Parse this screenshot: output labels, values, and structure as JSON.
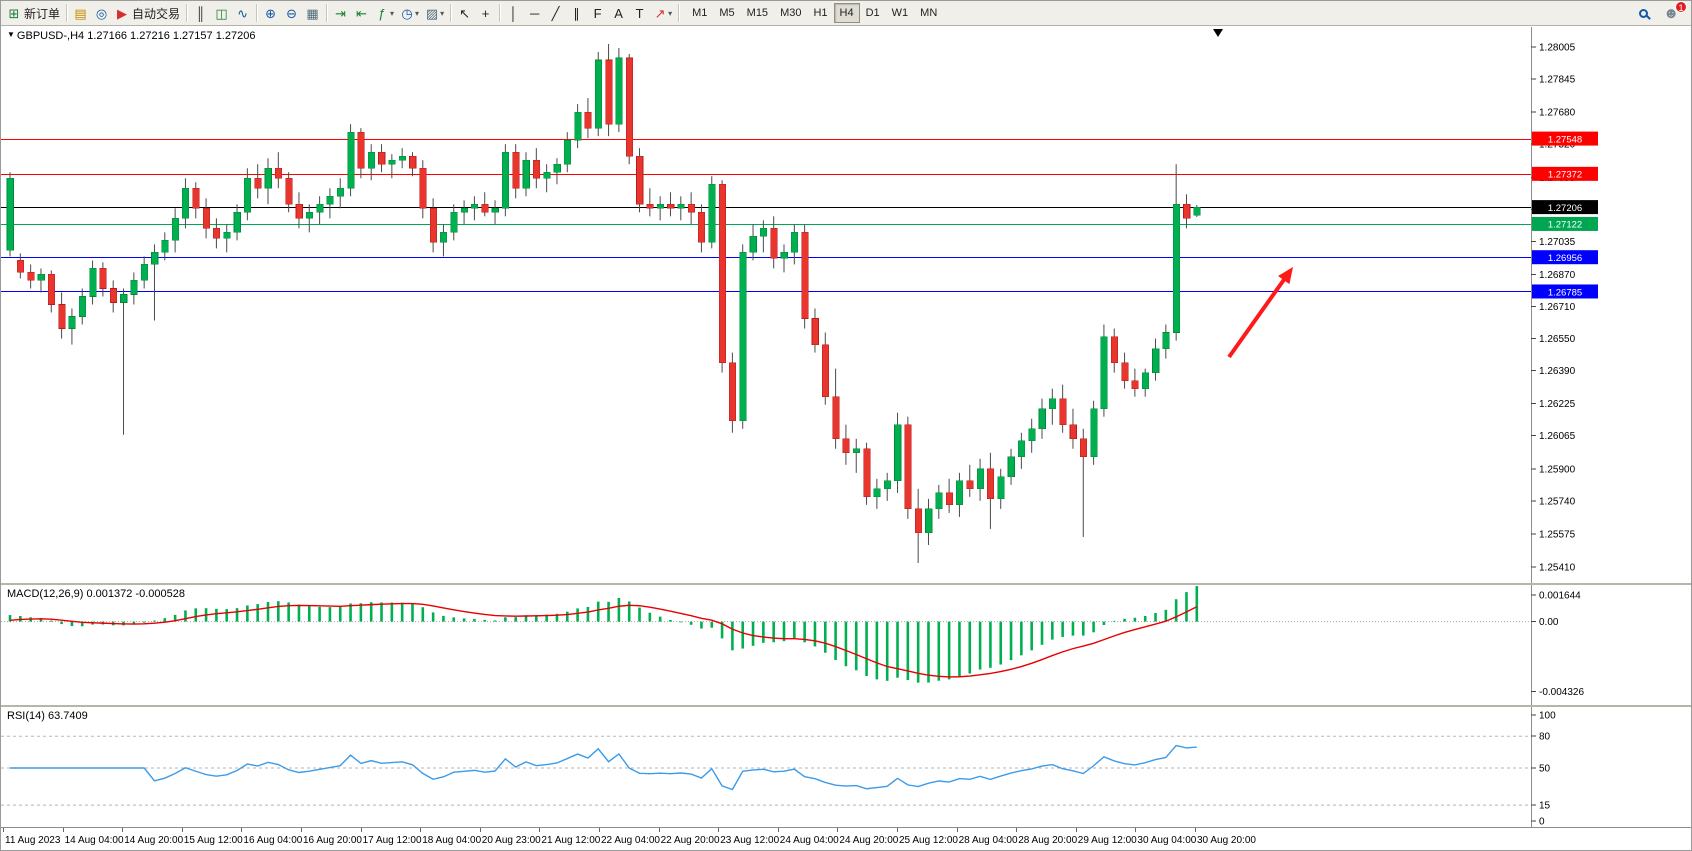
{
  "toolbar": {
    "notification_count": "1",
    "active_timeframe": "H4",
    "timeframes": [
      "M1",
      "M5",
      "M15",
      "M30",
      "H1",
      "H4",
      "D1",
      "W1",
      "MN"
    ],
    "items": [
      {
        "type": "button",
        "name": "new-order-button",
        "icon": "new-order-icon",
        "glyph": "⊞",
        "glyph_color": "#1a7f37",
        "label": "新订单"
      },
      {
        "type": "sep"
      },
      {
        "type": "button",
        "name": "charts-window-button",
        "icon": "chart-window-icon",
        "glyph": "▤",
        "glyph_color": "#c28b00"
      },
      {
        "type": "button",
        "name": "navigator-button",
        "icon": "navigator-icon",
        "glyph": "◎",
        "glyph_color": "#1258a8"
      },
      {
        "type": "button",
        "name": "auto-trading-button",
        "icon": "auto-trading-icon",
        "glyph": "▶",
        "glyph_color": "#d3302f",
        "label": "自动交易"
      },
      {
        "type": "sep"
      },
      {
        "type": "button",
        "name": "bar-chart-button",
        "icon": "ohlc-bars-icon",
        "glyph": "║",
        "glyph_color": "#333333"
      },
      {
        "type": "button",
        "name": "candlestick-chart-button",
        "icon": "candlestick-icon",
        "glyph": "◫",
        "glyph_color": "#1a7f37"
      },
      {
        "type": "button",
        "name": "line-chart-button",
        "icon": "line-chart-icon",
        "glyph": "∿",
        "glyph_color": "#1258a8"
      },
      {
        "type": "sep"
      },
      {
        "type": "button",
        "name": "zoom-in-button",
        "icon": "zoom-in-icon",
        "glyph": "⊕",
        "glyph_color": "#1258a8"
      },
      {
        "type": "button",
        "name": "zoom-out-button",
        "icon": "zoom-out-icon",
        "glyph": "⊖",
        "glyph_color": "#1258a8"
      },
      {
        "type": "button",
        "name": "tile-windows-button",
        "icon": "tile-windows-icon",
        "glyph": "▦",
        "glyph_color": "#4f6b7a"
      },
      {
        "type": "sep"
      },
      {
        "type": "button",
        "name": "auto-scroll-button",
        "icon": "auto-scroll-icon",
        "glyph": "⇥",
        "glyph_color": "#1a7f37"
      },
      {
        "type": "button",
        "name": "chart-shift-button",
        "icon": "chart-shift-icon",
        "glyph": "⇤",
        "glyph_color": "#1a7f37"
      },
      {
        "type": "button",
        "name": "indicators-button",
        "icon": "indicators-icon",
        "glyph": "ƒ",
        "glyph_color": "#1a7f37",
        "dropdown": true
      },
      {
        "type": "button",
        "name": "periods-button",
        "icon": "clock-icon",
        "glyph": "◷",
        "glyph_color": "#1258a8",
        "dropdown": true
      },
      {
        "type": "button",
        "name": "templates-button",
        "icon": "template-icon",
        "glyph": "▨",
        "glyph_color": "#4f6b7a",
        "dropdown": true
      },
      {
        "type": "sep"
      },
      {
        "type": "button",
        "name": "cursor-button",
        "icon": "cursor-icon",
        "glyph": "↖",
        "glyph_color": "#222222"
      },
      {
        "type": "button",
        "name": "crosshair-button",
        "icon": "crosshair-icon",
        "glyph": "+",
        "glyph_color": "#222222"
      },
      {
        "type": "sep"
      },
      {
        "type": "button",
        "name": "vertical-line-button",
        "icon": "vertical-line-icon",
        "glyph": "│",
        "glyph_color": "#222222"
      },
      {
        "type": "button",
        "name": "horizontal-line-button",
        "icon": "horizontal-line-icon",
        "glyph": "─",
        "glyph_color": "#222222"
      },
      {
        "type": "button",
        "name": "trendline-button",
        "icon": "trendline-icon",
        "glyph": "╱",
        "glyph_color": "#222222"
      },
      {
        "type": "button",
        "name": "channel-button",
        "icon": "channel-icon",
        "glyph": "∥",
        "glyph_color": "#222222"
      },
      {
        "type": "button",
        "name": "fibonacci-button",
        "icon": "fibonacci-icon",
        "glyph": "F",
        "glyph_color": "#222222"
      },
      {
        "type": "button",
        "name": "text-button",
        "icon": "text-icon",
        "glyph": "A",
        "glyph_color": "#222222"
      },
      {
        "type": "button",
        "name": "text-label-button",
        "icon": "text-label-icon",
        "glyph": "T",
        "glyph_color": "#222222"
      },
      {
        "type": "button",
        "name": "arrows-button",
        "icon": "arrow-tool-icon",
        "glyph": "↗",
        "glyph_color": "#d3302f",
        "dropdown": true
      },
      {
        "type": "sep"
      }
    ]
  },
  "chart": {
    "symbol_period": "GBPUSD-,H4",
    "ohlc_text": "1.27166 1.27216 1.27157 1.27206"
  },
  "macd": {
    "display": "MACD(12,26,9)",
    "values_text": "0.001372 -0.000528",
    "scale_ticks": [
      "0.001644",
      "0.00",
      "-0.004326"
    ],
    "scale_range": [
      -0.0048,
      0.0019
    ],
    "histogram_color": "#00b050",
    "signal_color": "#e60000"
  },
  "rsi": {
    "display": "RSI(14)",
    "value_text": "63.7409",
    "levels": [
      80,
      50,
      15
    ],
    "scale_ticks": [
      "100",
      "80",
      "50",
      "15",
      "0"
    ],
    "line_color": "#3d9be9",
    "range": [
      0,
      100
    ]
  },
  "colors": {
    "up": "#00b050",
    "down": "#e8352e",
    "up_border": "#008a38",
    "down_border": "#b71c1c",
    "wick": "#4a4a4a",
    "axis_line": "#8f8d84"
  },
  "chart_data": {
    "type": "candlestick",
    "symbol": "GBPUSD-",
    "timeframe": "H4",
    "y_range": [
      1.2541,
      1.28005
    ],
    "y_axis_ticks": [
      "1.28005",
      "1.27845",
      "1.27680",
      "1.27520",
      "1.27355",
      "1.27195",
      "1.27035",
      "1.26870",
      "1.26710",
      "1.26550",
      "1.26390",
      "1.26225",
      "1.26065",
      "1.25900",
      "1.25740",
      "1.25575",
      "1.25410"
    ],
    "x_axis_ticks": [
      "11 Aug 2023",
      "14 Aug 04:00",
      "14 Aug 20:00",
      "15 Aug 12:00",
      "16 Aug 04:00",
      "16 Aug 20:00",
      "17 Aug 12:00",
      "18 Aug 04:00",
      "20 Aug 23:00",
      "21 Aug 12:00",
      "22 Aug 04:00",
      "22 Aug 20:00",
      "23 Aug 12:00",
      "24 Aug 04:00",
      "24 Aug 20:00",
      "25 Aug 12:00",
      "28 Aug 04:00",
      "28 Aug 20:00",
      "29 Aug 12:00",
      "30 Aug 04:00",
      "30 Aug 20:00"
    ],
    "hlines": [
      {
        "name": "resistance-line-1",
        "price": 1.27548,
        "label": "1.27548",
        "color": "#ff0000"
      },
      {
        "name": "resistance-line-2",
        "price": 1.27372,
        "label": "1.27372",
        "color": "#ff0000"
      },
      {
        "name": "current-price-line",
        "price": 1.27206,
        "label": "1.27206",
        "color": "#000000"
      },
      {
        "name": "support-line-green",
        "price": 1.27122,
        "label": "1.27122",
        "color": "#00a651"
      },
      {
        "name": "support-line-blue-1",
        "price": 1.26956,
        "label": "1.26956",
        "color": "#0000ff"
      },
      {
        "name": "support-line-blue-2",
        "price": 1.26785,
        "label": "1.26785",
        "color": "#0000ff"
      }
    ],
    "annotation_arrow": {
      "from": [
        1228,
        330
      ],
      "to": [
        1292,
        240
      ],
      "color": "#ff1a1a"
    },
    "indicators": [
      "MACD(12,26,9)",
      "RSI(14)"
    ],
    "candles": [
      [
        1.2699,
        1.2738,
        1.2696,
        1.2735
      ],
      [
        1.2694,
        1.26975,
        1.2685,
        1.2688
      ],
      [
        1.2688,
        1.2692,
        1.268,
        1.2684
      ],
      [
        1.2684,
        1.269,
        1.2678,
        1.2687
      ],
      [
        1.2687,
        1.2689,
        1.2668,
        1.2672
      ],
      [
        1.2672,
        1.2678,
        1.2655,
        1.266
      ],
      [
        1.266,
        1.267,
        1.2652,
        1.2666
      ],
      [
        1.2666,
        1.268,
        1.2662,
        1.2676
      ],
      [
        1.2676,
        1.2694,
        1.2672,
        1.269
      ],
      [
        1.269,
        1.2693,
        1.2676,
        1.268
      ],
      [
        1.268,
        1.2684,
        1.2668,
        1.2673
      ],
      [
        1.2673,
        1.268,
        1.2607,
        1.2677
      ],
      [
        1.2677,
        1.2688,
        1.2672,
        1.2684
      ],
      [
        1.2684,
        1.2696,
        1.268,
        1.2692
      ],
      [
        1.2692,
        1.2702,
        1.2664,
        1.2698
      ],
      [
        1.2698,
        1.2708,
        1.2694,
        1.2704
      ],
      [
        1.2704,
        1.272,
        1.2698,
        1.2715
      ],
      [
        1.2715,
        1.2735,
        1.271,
        1.273
      ],
      [
        1.273,
        1.2733,
        1.2715,
        1.272
      ],
      [
        1.272,
        1.2725,
        1.2705,
        1.271
      ],
      [
        1.271,
        1.2715,
        1.27,
        1.2705
      ],
      [
        1.2705,
        1.2712,
        1.2698,
        1.2708
      ],
      [
        1.2708,
        1.2722,
        1.2704,
        1.2718
      ],
      [
        1.2718,
        1.274,
        1.2714,
        1.2735
      ],
      [
        1.2735,
        1.2742,
        1.2725,
        1.273
      ],
      [
        1.273,
        1.2745,
        1.2722,
        1.274
      ],
      [
        1.274,
        1.2748,
        1.273,
        1.2735
      ],
      [
        1.2735,
        1.2738,
        1.2718,
        1.2722
      ],
      [
        1.2722,
        1.2728,
        1.271,
        1.2715
      ],
      [
        1.2715,
        1.2722,
        1.2708,
        1.2718
      ],
      [
        1.2718,
        1.2726,
        1.2712,
        1.2722
      ],
      [
        1.2722,
        1.273,
        1.2715,
        1.2726
      ],
      [
        1.2726,
        1.2735,
        1.272,
        1.273
      ],
      [
        1.273,
        1.2762,
        1.2726,
        1.2758
      ],
      [
        1.2758,
        1.276,
        1.2735,
        1.274
      ],
      [
        1.274,
        1.2752,
        1.2734,
        1.2748
      ],
      [
        1.2748,
        1.2752,
        1.2738,
        1.2742
      ],
      [
        1.2742,
        1.2747,
        1.2735,
        1.2744
      ],
      [
        1.2744,
        1.275,
        1.274,
        1.2746
      ],
      [
        1.2746,
        1.2748,
        1.2736,
        1.274
      ],
      [
        1.274,
        1.2744,
        1.2715,
        1.272
      ],
      [
        1.272,
        1.2725,
        1.2698,
        1.2703
      ],
      [
        1.2703,
        1.2712,
        1.2696,
        1.2708
      ],
      [
        1.2708,
        1.2722,
        1.2704,
        1.2718
      ],
      [
        1.2718,
        1.2724,
        1.2712,
        1.272
      ],
      [
        1.272,
        1.2726,
        1.2714,
        1.2722
      ],
      [
        1.2722,
        1.2728,
        1.2716,
        1.2718
      ],
      [
        1.2718,
        1.2724,
        1.2712,
        1.272
      ],
      [
        1.272,
        1.2752,
        1.2716,
        1.2748
      ],
      [
        1.2748,
        1.2752,
        1.2725,
        1.273
      ],
      [
        1.273,
        1.2748,
        1.2726,
        1.2744
      ],
      [
        1.2744,
        1.275,
        1.273,
        1.2735
      ],
      [
        1.2735,
        1.2742,
        1.2728,
        1.2738
      ],
      [
        1.2738,
        1.2745,
        1.2732,
        1.2742
      ],
      [
        1.2742,
        1.2758,
        1.2738,
        1.2754
      ],
      [
        1.2754,
        1.2772,
        1.275,
        1.2768
      ],
      [
        1.2768,
        1.2775,
        1.2755,
        1.276
      ],
      [
        1.276,
        1.2798,
        1.2756,
        1.2794
      ],
      [
        1.2794,
        1.2802,
        1.2756,
        1.2762
      ],
      [
        1.2762,
        1.28,
        1.2758,
        1.2795
      ],
      [
        1.2795,
        1.2797,
        1.2742,
        1.2746
      ],
      [
        1.2746,
        1.275,
        1.2718,
        1.2722
      ],
      [
        1.2722,
        1.273,
        1.2716,
        1.272
      ],
      [
        1.272,
        1.2726,
        1.2714,
        1.2722
      ],
      [
        1.2722,
        1.2728,
        1.2716,
        1.272
      ],
      [
        1.272,
        1.2726,
        1.2714,
        1.2722
      ],
      [
        1.2722,
        1.2728,
        1.2712,
        1.2718
      ],
      [
        1.2718,
        1.2722,
        1.2698,
        1.2703
      ],
      [
        1.2703,
        1.2736,
        1.27,
        1.2732
      ],
      [
        1.2732,
        1.2734,
        1.2638,
        1.2643
      ],
      [
        1.2643,
        1.2648,
        1.2608,
        1.2614
      ],
      [
        1.2614,
        1.2702,
        1.261,
        1.2698
      ],
      [
        1.2698,
        1.2712,
        1.2694,
        1.2706
      ],
      [
        1.2706,
        1.2714,
        1.2698,
        1.271
      ],
      [
        1.271,
        1.2716,
        1.269,
        1.2695
      ],
      [
        1.2695,
        1.2702,
        1.2688,
        1.2698
      ],
      [
        1.2698,
        1.2712,
        1.2692,
        1.2708
      ],
      [
        1.2708,
        1.2712,
        1.266,
        1.2665
      ],
      [
        1.2665,
        1.267,
        1.2648,
        1.2652
      ],
      [
        1.2652,
        1.2658,
        1.2622,
        1.2626
      ],
      [
        1.2626,
        1.264,
        1.26,
        1.2605
      ],
      [
        1.2605,
        1.2612,
        1.2592,
        1.2598
      ],
      [
        1.2598,
        1.2605,
        1.2588,
        1.26
      ],
      [
        1.26,
        1.2603,
        1.2572,
        1.2576
      ],
      [
        1.2576,
        1.2585,
        1.257,
        1.258
      ],
      [
        1.258,
        1.2588,
        1.2574,
        1.2584
      ],
      [
        1.2584,
        1.2618,
        1.2578,
        1.2612
      ],
      [
        1.2612,
        1.2616,
        1.2565,
        1.257
      ],
      [
        1.257,
        1.258,
        1.2543,
        1.2558
      ],
      [
        1.2558,
        1.2575,
        1.2552,
        1.257
      ],
      [
        1.257,
        1.2582,
        1.2565,
        1.2578
      ],
      [
        1.2578,
        1.2585,
        1.2568,
        1.2572
      ],
      [
        1.2572,
        1.2588,
        1.2566,
        1.2584
      ],
      [
        1.2584,
        1.2592,
        1.2576,
        1.258
      ],
      [
        1.258,
        1.2595,
        1.2574,
        1.259
      ],
      [
        1.259,
        1.2598,
        1.256,
        1.2575
      ],
      [
        1.2575,
        1.259,
        1.257,
        1.2586
      ],
      [
        1.2586,
        1.26,
        1.2582,
        1.2596
      ],
      [
        1.2596,
        1.2608,
        1.259,
        1.2604
      ],
      [
        1.2604,
        1.2615,
        1.2598,
        1.261
      ],
      [
        1.261,
        1.2625,
        1.2605,
        1.262
      ],
      [
        1.262,
        1.263,
        1.2612,
        1.2625
      ],
      [
        1.2625,
        1.2632,
        1.2608,
        1.2612
      ],
      [
        1.2612,
        1.262,
        1.26,
        1.2605
      ],
      [
        1.2605,
        1.261,
        1.2556,
        1.2596
      ],
      [
        1.2596,
        1.2624,
        1.2592,
        1.262
      ],
      [
        1.262,
        1.2662,
        1.2616,
        1.2656
      ],
      [
        1.2656,
        1.266,
        1.2638,
        1.2643
      ],
      [
        1.2643,
        1.2648,
        1.263,
        1.2634
      ],
      [
        1.2634,
        1.264,
        1.2626,
        1.263
      ],
      [
        1.263,
        1.264,
        1.2626,
        1.2638
      ],
      [
        1.2638,
        1.2655,
        1.2634,
        1.265
      ],
      [
        1.265,
        1.2662,
        1.2645,
        1.2658
      ],
      [
        1.2658,
        1.2742,
        1.2654,
        1.2722
      ],
      [
        1.2722,
        1.2727,
        1.271,
        1.2715
      ],
      [
        1.27166,
        1.27216,
        1.27157,
        1.27206
      ]
    ]
  }
}
